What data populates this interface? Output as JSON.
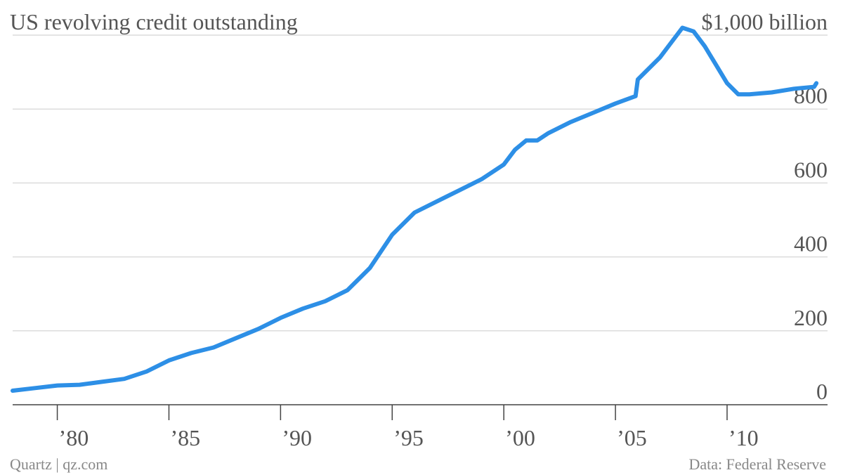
{
  "chart_data": {
    "type": "line",
    "title": "US revolving credit outstanding",
    "ylabel": "$1,000 billion",
    "xlim": [
      1978,
      2014.5
    ],
    "ylim": [
      0,
      1000
    ],
    "grid": true,
    "x_ticks": [
      {
        "value": 1980,
        "label": "’80"
      },
      {
        "value": 1985,
        "label": "’85"
      },
      {
        "value": 1990,
        "label": "’90"
      },
      {
        "value": 1995,
        "label": "’95"
      },
      {
        "value": 2000,
        "label": "’00"
      },
      {
        "value": 2005,
        "label": "’05"
      },
      {
        "value": 2010,
        "label": "’10"
      }
    ],
    "y_ticks": [
      {
        "value": 0,
        "label": "0"
      },
      {
        "value": 200,
        "label": "200"
      },
      {
        "value": 400,
        "label": "400"
      },
      {
        "value": 600,
        "label": "600"
      },
      {
        "value": 800,
        "label": "800"
      },
      {
        "value": 1000,
        "label": "$1,000 billion"
      }
    ],
    "series": [
      {
        "color": "#2d8fe6",
        "x": [
          1978.0,
          1979.0,
          1980.0,
          1981.0,
          1982.0,
          1983.0,
          1984.0,
          1984.5,
          1985.0,
          1986.0,
          1987.0,
          1988.0,
          1989.0,
          1990.0,
          1991.0,
          1992.0,
          1993.0,
          1994.0,
          1995.0,
          1996.0,
          1997.0,
          1998.0,
          1999.0,
          2000.0,
          2000.5,
          2001.0,
          2001.5,
          2002.0,
          2003.0,
          2004.0,
          2005.0,
          2005.9,
          2006.0,
          2007.0,
          2007.5,
          2008.0,
          2008.5,
          2009.0,
          2009.5,
          2010.0,
          2010.5,
          2011.0,
          2012.0,
          2013.0,
          2013.9,
          2014.0
        ],
        "y": [
          38,
          45,
          52,
          54,
          62,
          70,
          90,
          105,
          120,
          140,
          155,
          180,
          205,
          235,
          260,
          280,
          310,
          370,
          460,
          520,
          550,
          580,
          610,
          650,
          690,
          715,
          715,
          735,
          765,
          790,
          815,
          835,
          880,
          940,
          980,
          1020,
          1010,
          970,
          920,
          870,
          840,
          840,
          845,
          855,
          860,
          870
        ]
      }
    ]
  },
  "footer": {
    "source_left": "Quartz | qz.com",
    "source_right": "Data: Federal Reserve"
  }
}
